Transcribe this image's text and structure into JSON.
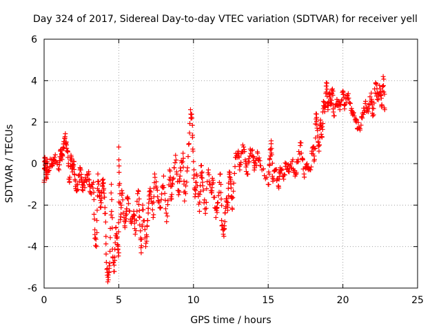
{
  "chart_data": {
    "type": "scatter",
    "title": "Day 324 of 2017, Sidereal Day-to-day VTEC variation (SDTVAR) for receiver yell",
    "xlabel": "GPS time / hours",
    "ylabel": "SDTVAR / TECUs",
    "xlim": [
      0,
      25
    ],
    "ylim": [
      -6,
      6
    ],
    "xticks": [
      0,
      5,
      10,
      15,
      20,
      25
    ],
    "yticks": [
      -6,
      -4,
      -2,
      0,
      2,
      4,
      6
    ],
    "xtick_labels": [
      "0",
      "5",
      "10",
      "15",
      "20",
      "25"
    ],
    "ytick_labels": [
      "-6",
      "-4",
      "-2",
      "0",
      "2",
      "4",
      "6"
    ],
    "grid": true,
    "marker": "+",
    "series": [
      {
        "name": "SDTVAR",
        "color": "#ff0000",
        "trace": [
          [
            0.0,
            -0.9
          ],
          [
            0.05,
            0.3
          ],
          [
            0.1,
            -0.2
          ],
          [
            0.15,
            -0.7
          ],
          [
            0.2,
            0.1
          ],
          [
            0.25,
            -0.4
          ],
          [
            0.5,
            0.2
          ],
          [
            0.6,
            0.0
          ],
          [
            0.7,
            0.3
          ],
          [
            1.0,
            -0.3
          ],
          [
            1.1,
            0.6
          ],
          [
            1.2,
            0.2
          ],
          [
            1.3,
            0.8
          ],
          [
            1.4,
            1.3
          ],
          [
            1.5,
            0.9
          ],
          [
            1.6,
            0.3
          ],
          [
            1.7,
            -0.9
          ],
          [
            1.8,
            0.4
          ],
          [
            1.9,
            -0.4
          ],
          [
            2.0,
            0.1
          ],
          [
            2.1,
            -1.1
          ],
          [
            2.2,
            -1.3
          ],
          [
            2.4,
            -0.3
          ],
          [
            2.5,
            -0.8
          ],
          [
            2.6,
            -1.3
          ],
          [
            2.8,
            -0.8
          ],
          [
            3.0,
            -0.5
          ],
          [
            3.1,
            -1.4
          ],
          [
            3.3,
            -0.9
          ],
          [
            3.4,
            -3.6
          ],
          [
            3.5,
            -4.0
          ],
          [
            3.6,
            -0.5
          ],
          [
            3.7,
            -1.6
          ],
          [
            3.8,
            -2.1
          ],
          [
            3.9,
            -0.8
          ],
          [
            4.0,
            -1.2
          ],
          [
            4.1,
            -2.4
          ],
          [
            4.2,
            -5.1
          ],
          [
            4.3,
            -5.6
          ],
          [
            4.4,
            -4.8
          ],
          [
            4.5,
            -1.0
          ],
          [
            4.6,
            -4.5
          ],
          [
            4.7,
            -5.2
          ],
          [
            4.8,
            -3.1
          ],
          [
            4.9,
            -3.9
          ],
          [
            5.0,
            -4.3
          ],
          [
            5.0,
            0.8
          ],
          [
            5.1,
            -2.7
          ],
          [
            5.2,
            -1.3
          ],
          [
            5.4,
            -3.0
          ],
          [
            5.5,
            -2.3
          ],
          [
            5.6,
            -1.7
          ],
          [
            5.8,
            -2.8
          ],
          [
            6.0,
            -2.3
          ],
          [
            6.1,
            -3.4
          ],
          [
            6.3,
            -1.3
          ],
          [
            6.4,
            -2.6
          ],
          [
            6.5,
            -4.3
          ],
          [
            6.6,
            -2.0
          ],
          [
            6.8,
            -4.0
          ],
          [
            6.9,
            -3.0
          ],
          [
            7.0,
            -1.9
          ],
          [
            7.1,
            -1.2
          ],
          [
            7.3,
            -2.6
          ],
          [
            7.4,
            -0.5
          ],
          [
            7.6,
            -1.6
          ],
          [
            7.8,
            -2.1
          ],
          [
            8.0,
            -0.6
          ],
          [
            8.2,
            -2.8
          ],
          [
            8.4,
            -0.3
          ],
          [
            8.5,
            -1.7
          ],
          [
            8.6,
            -1.0
          ],
          [
            8.8,
            0.4
          ],
          [
            9.0,
            -1.5
          ],
          [
            9.1,
            -0.6
          ],
          [
            9.3,
            0.5
          ],
          [
            9.4,
            -1.8
          ],
          [
            9.6,
            -0.2
          ],
          [
            9.8,
            2.6
          ],
          [
            9.9,
            2.2
          ],
          [
            10.0,
            0.1
          ],
          [
            10.1,
            -1.6
          ],
          [
            10.2,
            -0.5
          ],
          [
            10.4,
            -2.3
          ],
          [
            10.5,
            -0.1
          ],
          [
            10.6,
            -0.9
          ],
          [
            10.8,
            -2.4
          ],
          [
            11.0,
            -0.3
          ],
          [
            11.2,
            -1.4
          ],
          [
            11.3,
            -0.8
          ],
          [
            11.5,
            -2.6
          ],
          [
            11.6,
            -1.9
          ],
          [
            11.8,
            -0.5
          ],
          [
            11.9,
            -3.0
          ],
          [
            12.0,
            -3.4
          ],
          [
            12.1,
            -2.8
          ],
          [
            12.2,
            -1.7
          ],
          [
            12.3,
            -2.1
          ],
          [
            12.4,
            -0.4
          ],
          [
            12.5,
            -1.0
          ],
          [
            12.6,
            -2.2
          ],
          [
            12.8,
            0.3
          ],
          [
            13.0,
            0.6
          ],
          [
            13.1,
            -0.3
          ],
          [
            13.3,
            0.9
          ],
          [
            13.5,
            0.1
          ],
          [
            13.6,
            -0.5
          ],
          [
            13.8,
            0.7
          ],
          [
            14.0,
            0.3
          ],
          [
            14.1,
            -0.2
          ],
          [
            14.3,
            0.5
          ],
          [
            14.5,
            -0.1
          ],
          [
            15.0,
            -1.0
          ],
          [
            15.1,
            0.2
          ],
          [
            15.2,
            1.1
          ],
          [
            15.3,
            -0.7
          ],
          [
            15.5,
            -0.3
          ],
          [
            15.7,
            -1.1
          ],
          [
            15.8,
            -0.2
          ],
          [
            16.0,
            -0.6
          ],
          [
            16.2,
            0.0
          ],
          [
            16.4,
            -0.4
          ],
          [
            16.6,
            0.1
          ],
          [
            16.8,
            -0.6
          ],
          [
            17.0,
            0.2
          ],
          [
            17.2,
            1.0
          ],
          [
            17.4,
            -0.5
          ],
          [
            17.6,
            0.0
          ],
          [
            17.8,
            -0.3
          ],
          [
            18.0,
            0.8
          ],
          [
            18.1,
            0.2
          ],
          [
            18.2,
            2.4
          ],
          [
            18.3,
            1.6
          ],
          [
            18.4,
            0.6
          ],
          [
            18.5,
            2.1
          ],
          [
            18.6,
            1.3
          ],
          [
            18.7,
            3.0
          ],
          [
            18.8,
            2.7
          ],
          [
            18.9,
            3.9
          ],
          [
            19.0,
            2.6
          ],
          [
            19.1,
            3.4
          ],
          [
            19.2,
            2.9
          ],
          [
            19.3,
            3.6
          ],
          [
            19.4,
            2.3
          ],
          [
            19.6,
            3.1
          ],
          [
            19.8,
            2.6
          ],
          [
            20.0,
            3.5
          ],
          [
            20.1,
            2.8
          ],
          [
            20.3,
            3.3
          ],
          [
            20.5,
            2.9
          ],
          [
            20.7,
            2.4
          ],
          [
            20.9,
            2.0
          ],
          [
            21.1,
            1.7
          ],
          [
            21.3,
            2.2
          ],
          [
            21.5,
            2.9
          ],
          [
            21.7,
            2.5
          ],
          [
            21.9,
            3.4
          ],
          [
            22.0,
            2.3
          ],
          [
            22.2,
            3.9
          ],
          [
            22.3,
            3.1
          ],
          [
            22.5,
            3.6
          ],
          [
            22.6,
            2.8
          ],
          [
            22.7,
            4.2
          ],
          [
            22.8,
            2.6
          ]
        ]
      }
    ]
  }
}
